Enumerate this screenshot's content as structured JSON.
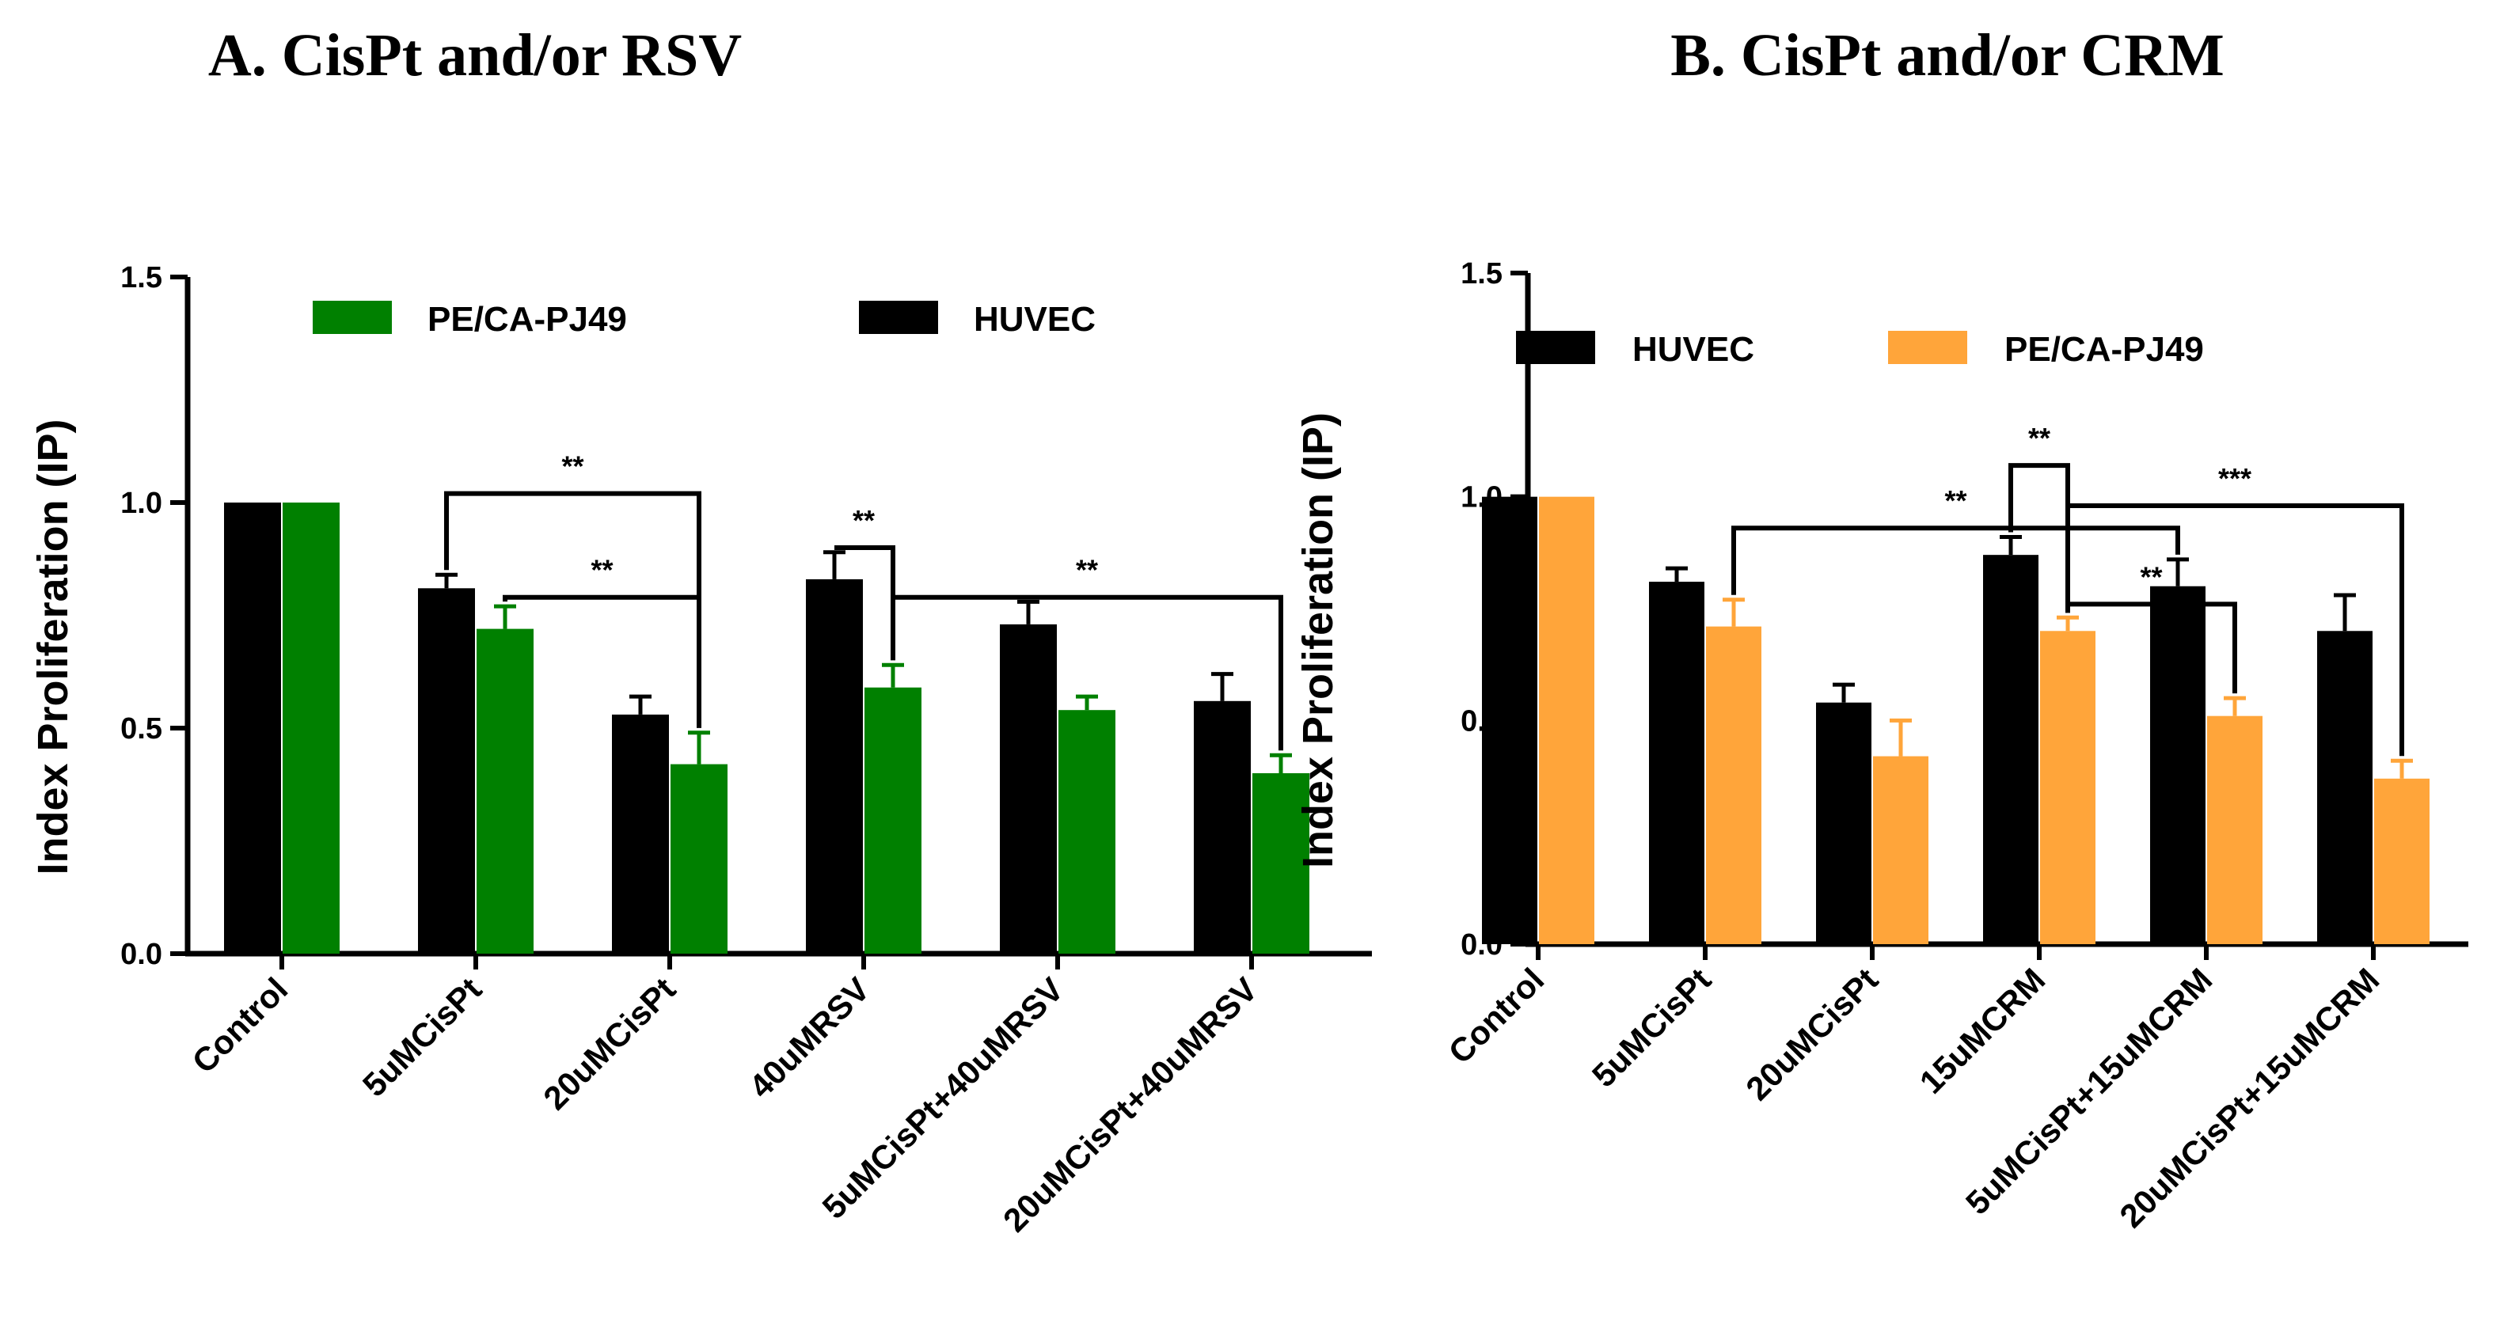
{
  "chart_data": [
    {
      "type": "bar",
      "title": "A. CisPt and/or RSV",
      "xlabel": "",
      "ylabel": "Index Proliferation (IP)",
      "ylim": [
        0,
        1.5
      ],
      "yticks": [
        "0.0",
        "0.5",
        "1.0",
        "1.5"
      ],
      "categories": [
        "Control",
        "5uMCisPt",
        "20uMCisPt",
        "40uMRSV",
        "5uMCisPt+40uMRSV",
        "20uMCisPt+40uMRSV"
      ],
      "legend_position": "top",
      "series": [
        {
          "name": "HUVEC",
          "color": "#000000",
          "values": [
            1.0,
            0.81,
            0.53,
            0.83,
            0.73,
            0.56
          ],
          "errors": [
            0,
            0.03,
            0.04,
            0.06,
            0.05,
            0.06
          ]
        },
        {
          "name": "PE/CA-PJ49",
          "color": "#008000",
          "values": [
            1.0,
            0.72,
            0.42,
            0.59,
            0.54,
            0.4
          ],
          "errors": [
            0,
            0.05,
            0.07,
            0.05,
            0.03,
            0.04
          ]
        }
      ],
      "legend": [
        {
          "name": "PE/CA-PJ49",
          "color": "#008000"
        },
        {
          "name": "HUVEC",
          "color": "#000000"
        }
      ],
      "annotations": [
        {
          "text": "**",
          "from": [
            1,
            0
          ],
          "to": [
            2,
            1
          ],
          "y": 1.02
        },
        {
          "text": "**",
          "from": [
            1,
            1
          ],
          "to": [
            2,
            1
          ],
          "y": 0.79
        },
        {
          "text": "**",
          "from": [
            3,
            0
          ],
          "to": [
            3,
            1
          ],
          "y": 0.9
        },
        {
          "text": "**",
          "from": [
            3,
            1
          ],
          "to": [
            5,
            1
          ],
          "y": 0.79
        }
      ]
    },
    {
      "type": "bar",
      "title": "B. CisPt and/or CRM",
      "xlabel": "",
      "ylabel": "Index Proliferation (IP)",
      "ylim": [
        0,
        1.5
      ],
      "yticks": [
        "0.0",
        "0.5",
        "1.0",
        "1.5"
      ],
      "categories": [
        "Control",
        "5uMCisPt",
        "20uMCisPt",
        "15uMCRM",
        "5uMCisPt+15uMCRM",
        "20uMCisPt+15uMCRM"
      ],
      "legend_position": "top",
      "series": [
        {
          "name": "HUVEC",
          "color": "#000000",
          "values": [
            1.0,
            0.81,
            0.54,
            0.87,
            0.8,
            0.7
          ],
          "errors": [
            0,
            0.03,
            0.04,
            0.04,
            0.06,
            0.08
          ]
        },
        {
          "name": "PE/CA-PJ49",
          "color": "#FFA53A",
          "values": [
            1.0,
            0.71,
            0.42,
            0.7,
            0.51,
            0.37
          ],
          "errors": [
            0,
            0.06,
            0.08,
            0.03,
            0.04,
            0.04
          ]
        }
      ],
      "legend": [
        {
          "name": "HUVEC",
          "color": "#000000"
        },
        {
          "name": "PE/CA-PJ49",
          "color": "#FFA53A"
        }
      ],
      "annotations": [
        {
          "text": "**",
          "from": [
            1,
            1
          ],
          "to": [
            4,
            0
          ],
          "y": 0.93
        },
        {
          "text": "**",
          "from": [
            3,
            0
          ],
          "to": [
            3,
            1
          ],
          "y": 1.07
        },
        {
          "text": "**",
          "from": [
            3,
            1
          ],
          "to": [
            4,
            1
          ],
          "y": 0.76
        },
        {
          "text": "***",
          "from": [
            3,
            1
          ],
          "to": [
            5,
            1
          ],
          "y": 0.98
        }
      ]
    }
  ]
}
